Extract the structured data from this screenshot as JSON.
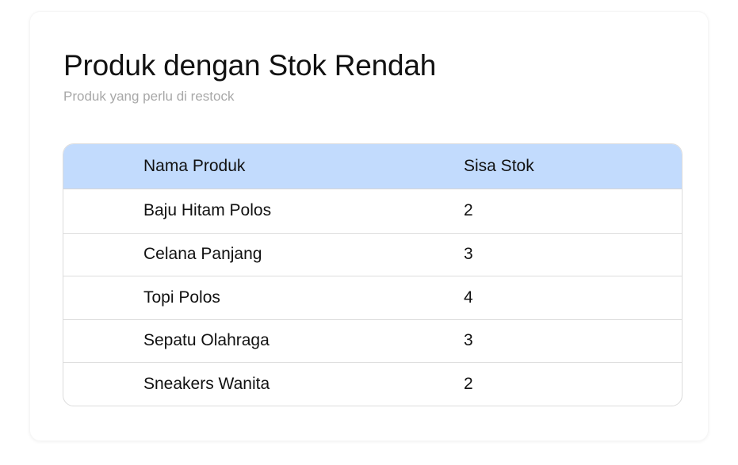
{
  "header": {
    "title": "Produk dengan Stok Rendah",
    "subtitle": "Produk yang perlu di restock"
  },
  "table": {
    "columns": [
      "Nama Produk",
      "Sisa Stok"
    ],
    "rows": [
      {
        "name": "Baju Hitam Polos",
        "stock": "2"
      },
      {
        "name": "Celana Panjang",
        "stock": "3"
      },
      {
        "name": "Topi Polos",
        "stock": "4"
      },
      {
        "name": "Sepatu Olahraga",
        "stock": "3"
      },
      {
        "name": "Sneakers Wanita",
        "stock": "2"
      }
    ]
  },
  "colors": {
    "header_bg": "#c2dbfd"
  }
}
